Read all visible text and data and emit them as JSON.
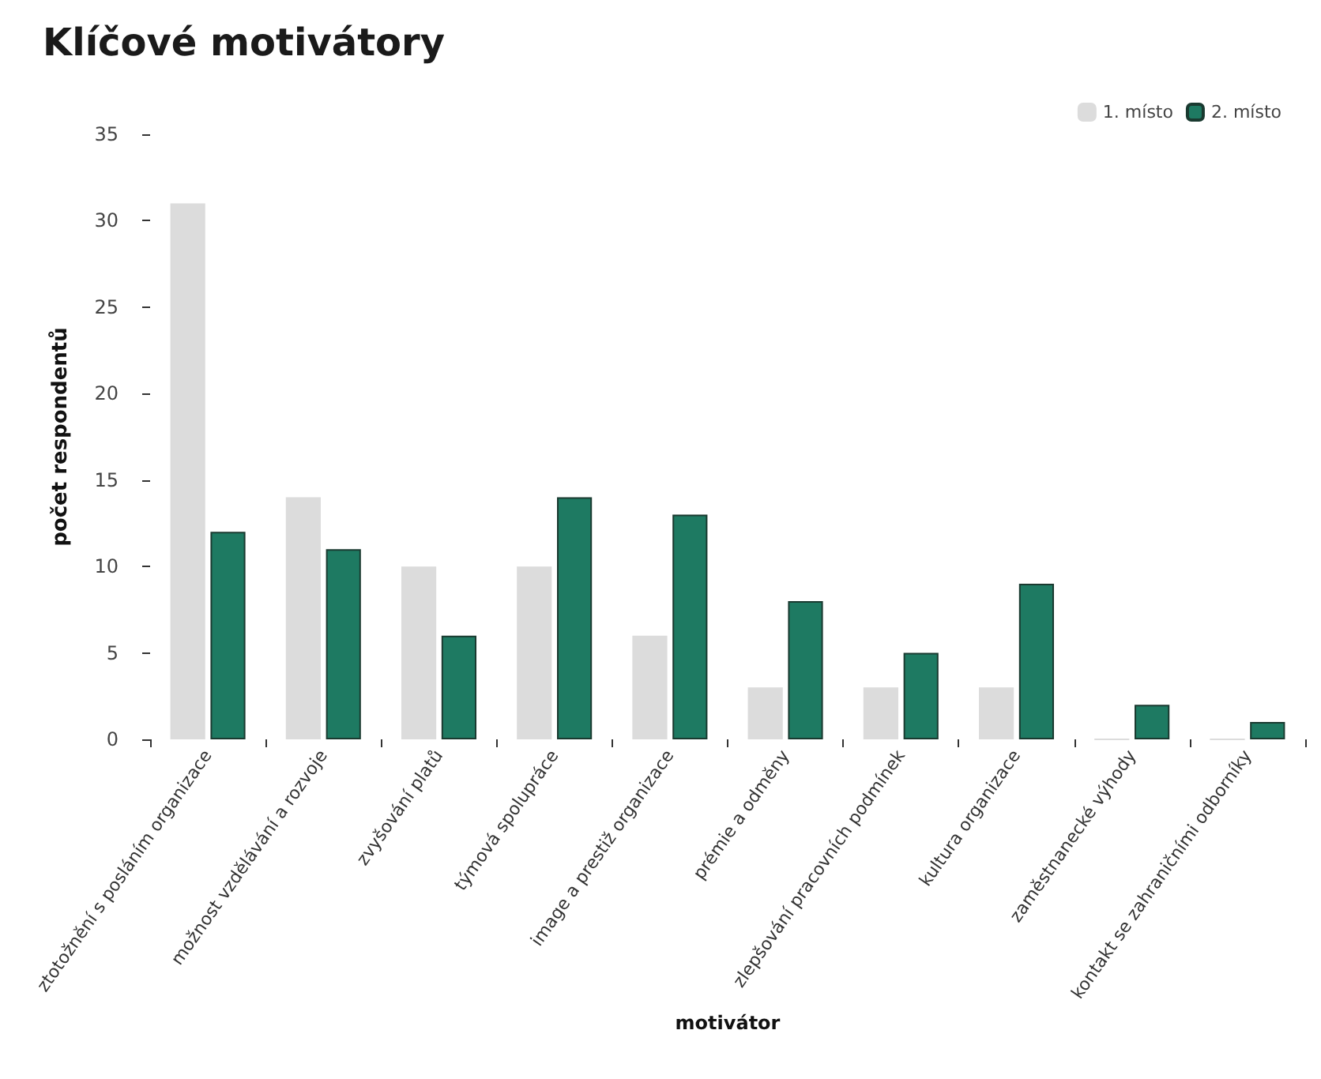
{
  "chart_data": {
    "type": "bar",
    "title": "Klíčové motivátory",
    "xlabel": "motivátor",
    "ylabel": "počet respondentů",
    "categories": [
      "ztotožnění s posláním organizace",
      "možnost vzdělávání a rozvoje",
      "zvyšování platů",
      "týmová spolupráce",
      "image a prestiž organizace",
      "prémie a odměny",
      "zlepšování pracovních podmínek",
      "kultura organizace",
      "zaměstnanecké výhody",
      "kontakt se zahraničními odborníky"
    ],
    "series": [
      {
        "name": "1. místo",
        "color": "#dcdcdc",
        "values": [
          31,
          14,
          10,
          10,
          6,
          3,
          3,
          3,
          0,
          0
        ]
      },
      {
        "name": "2. místo",
        "color": "#1e7a62",
        "values": [
          12,
          11,
          6,
          14,
          13,
          8,
          5,
          9,
          2,
          1
        ]
      }
    ],
    "ylim": [
      0,
      35
    ],
    "yticks": [
      0,
      5,
      10,
      15,
      20,
      25,
      30,
      35
    ],
    "grid": false,
    "legend": "top right"
  }
}
